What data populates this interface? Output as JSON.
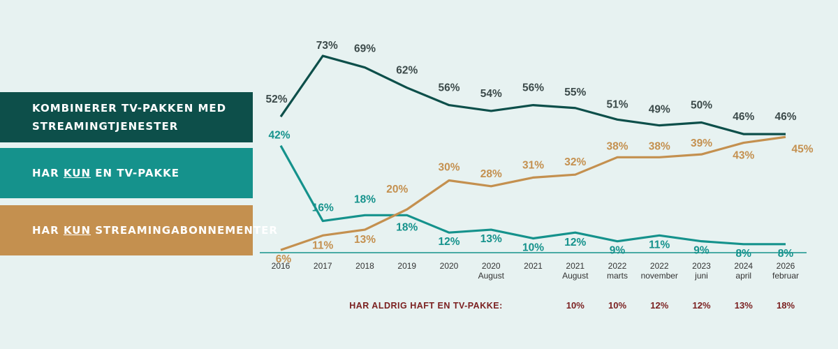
{
  "legend": {
    "combined": {
      "line1": "KOMBINERER TV-PAKKEN MED",
      "line2": "STREAMINGTJENESTER"
    },
    "tv_only": {
      "pre": "HAR ",
      "kun": "KUN",
      "post": " EN TV-PAKKE"
    },
    "streaming_only": {
      "pre": "HAR ",
      "kun": "KUN",
      "post": " STREAMINGABONNEMENTER"
    }
  },
  "colors": {
    "background": "#e7f2f1",
    "combined": "#0d4f4a",
    "tv_only": "#15928c",
    "streaming_only": "#c4904f",
    "never_label": "#7a1f1f",
    "axis_text": "#333333"
  },
  "chart_data": {
    "type": "line",
    "categories": [
      [
        "2016"
      ],
      [
        "2017"
      ],
      [
        "2018"
      ],
      [
        "2019"
      ],
      [
        "2020"
      ],
      [
        "2020",
        "August"
      ],
      [
        "2021"
      ],
      [
        "2021",
        "August"
      ],
      [
        "2022",
        "marts"
      ],
      [
        "2022",
        "november"
      ],
      [
        "2023",
        "juni"
      ],
      [
        "2024",
        "april"
      ],
      [
        "2026",
        "februar"
      ]
    ],
    "ylim": [
      0,
      80
    ],
    "series": [
      {
        "name": "Kombinerer TV-pakken med streamingtjenester",
        "key": "combined",
        "values": [
          52,
          73,
          69,
          62,
          56,
          54,
          56,
          55,
          51,
          49,
          50,
          46,
          46
        ]
      },
      {
        "name": "Har kun en TV-pakke",
        "key": "tv_only",
        "values": [
          42,
          16,
          18,
          18,
          12,
          13,
          10,
          12,
          9,
          11,
          9,
          8,
          8
        ]
      },
      {
        "name": "Har kun streamingabonnementer",
        "key": "streaming_only",
        "values": [
          6,
          11,
          13,
          20,
          30,
          28,
          31,
          32,
          38,
          38,
          39,
          43,
          45
        ]
      }
    ],
    "never_had_tv": {
      "label": "HAR ALDRIG HAFT EN TV-PAKKE:",
      "values": [
        null,
        null,
        null,
        null,
        null,
        null,
        null,
        10,
        10,
        12,
        12,
        13,
        18
      ]
    }
  }
}
